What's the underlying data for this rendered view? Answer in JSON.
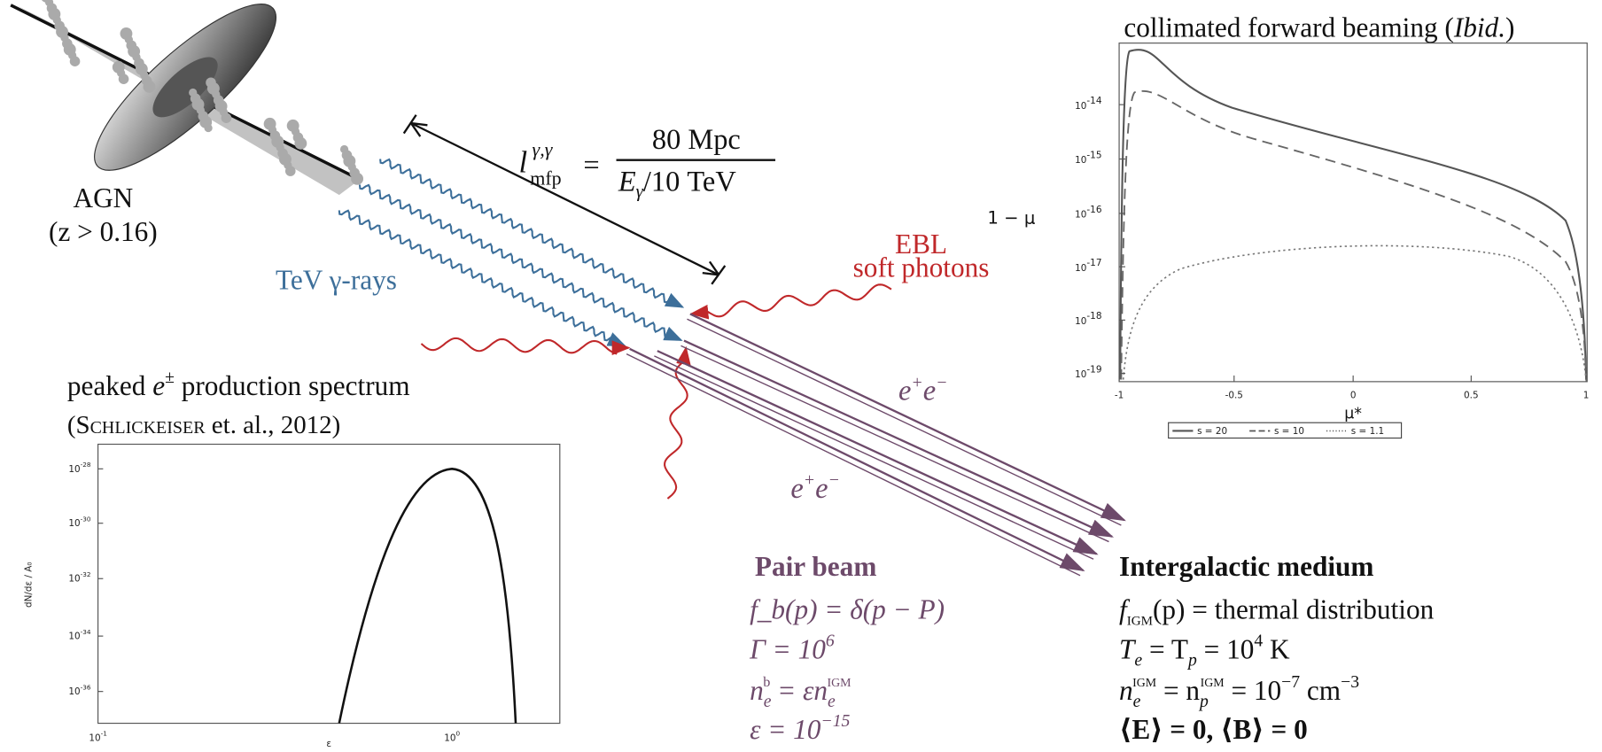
{
  "agn": {
    "label": "AGN",
    "redshift": "(z > 0.16)"
  },
  "gamma_rays": "TeV γ-rays",
  "mean_free_path": {
    "symbol": "l",
    "sup": "γ,γ",
    "sub": "mfp",
    "equals": "=",
    "numerator": "80 Mpc",
    "denominator": "E",
    "denominator_sub": "γ",
    "denominator_rest": "/10 TeV"
  },
  "ebl": {
    "line1": "EBL",
    "line2": "soft photons"
  },
  "pair_label": {
    "particle": "e",
    "plus": "+",
    "minus": "−"
  },
  "left_plot": {
    "title": {
      "pre": "peaked ",
      "symbol": "e",
      "sup": "±",
      "post": " production spectrum"
    },
    "citation": {
      "open": "(",
      "author": "Schlickeiser",
      "rest": " et. al., 2012)"
    },
    "ylabel": "dN/dε / A₀",
    "yticks": [
      {
        "base": "10",
        "exp": "-28"
      },
      {
        "base": "10",
        "exp": "-30"
      },
      {
        "base": "10",
        "exp": "-32"
      },
      {
        "base": "10",
        "exp": "-34"
      },
      {
        "base": "10",
        "exp": "-36"
      }
    ],
    "xticks": [
      {
        "base": "10",
        "exp": "-1"
      },
      {
        "base": "10",
        "exp": "0"
      }
    ],
    "xlabel": "ε"
  },
  "right_plot": {
    "title": {
      "main": "collimated forward beaming (",
      "italic": "Ibid.",
      "close": ")"
    },
    "ylabel": "1 − μ",
    "yticks": [
      {
        "base": "10",
        "exp": "-14"
      },
      {
        "base": "10",
        "exp": "-15"
      },
      {
        "base": "10",
        "exp": "-16"
      },
      {
        "base": "10",
        "exp": "-17"
      },
      {
        "base": "10",
        "exp": "-18"
      },
      {
        "base": "10",
        "exp": "-19"
      }
    ],
    "xticks": [
      "-1",
      "-0.5",
      "0",
      "0.5",
      "1"
    ],
    "xlabel": "μ*",
    "legend": [
      "s = 20",
      "s = 10",
      "s = 1.1"
    ]
  },
  "pair_beam": {
    "title": "Pair beam",
    "distribution": "f_b(p) = δ(p − P)",
    "lorentz": {
      "lhs": "Γ = 10",
      "exp": "6"
    },
    "density": {
      "lhs": "n",
      "sub": "e",
      "sup": "b",
      "mid": " = εn",
      "sub2": "e",
      "sup2": "IGM"
    },
    "ratio": {
      "lhs": "ε = 10",
      "exp": "−15"
    }
  },
  "medium": {
    "title": "Intergalactic medium",
    "distribution": {
      "f": "f",
      "sub": "IGM",
      "rest": "(p) = thermal distribution"
    },
    "temperature": {
      "lhs": "T",
      "sub": "e",
      "mid": " = T",
      "sub2": "p",
      "rhs": " = 10",
      "exp": "4",
      "unit": " K"
    },
    "density": {
      "lhs": "n",
      "sub": "e",
      "sup": "IGM",
      "mid": " = n",
      "sub2": "p",
      "sup2": "IGM",
      "rhs": " = 10",
      "exp": "−7",
      "unit": " cm",
      "unit_exp": "−3"
    },
    "fields": "⟨E⟩ = 0,  ⟨B⟩ = 0"
  }
}
